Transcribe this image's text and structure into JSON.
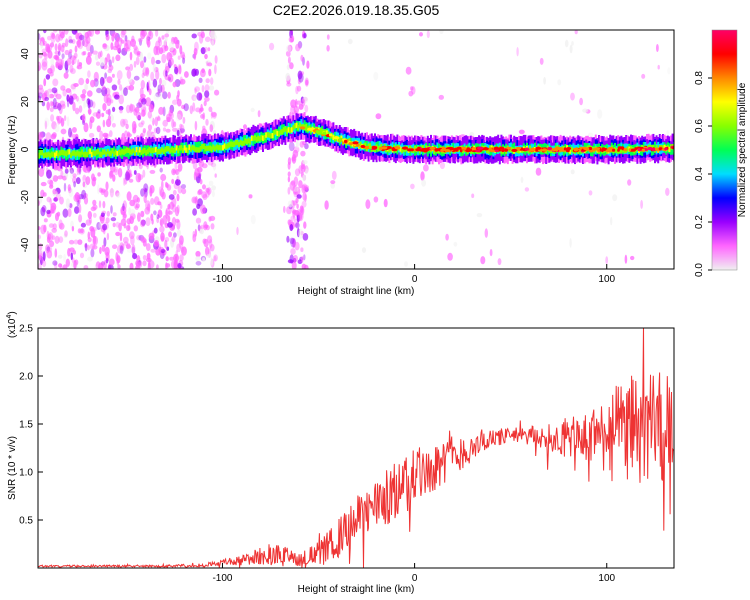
{
  "chart_data": [
    {
      "type": "heatmap",
      "title": "C2E2.2026.019.18.35.G05",
      "xlabel": "Height of straight line (km)",
      "ylabel": "Frequency (Hz)",
      "xlim": [
        -196,
        135
      ],
      "ylim": [
        -50,
        50
      ],
      "xticks": [
        -100,
        0,
        100
      ],
      "xtick_labels": [
        "-100",
        "0",
        "100"
      ],
      "yticks": [
        -40,
        -20,
        0,
        20,
        40
      ],
      "ytick_labels": [
        "-40",
        "-20",
        "0",
        "20",
        "40"
      ],
      "colorbar": {
        "label": "Normalized spectral amplitude",
        "range": [
          0,
          1
        ],
        "ticks": [
          0.0,
          0.2,
          0.4,
          0.6,
          0.8
        ],
        "tick_labels": [
          "0.0",
          "0.2",
          "0.4",
          "0.6",
          "0.8"
        ],
        "colors": [
          "#f0f0f0",
          "#ff66ff",
          "#9900ff",
          "#0000ff",
          "#00ddff",
          "#00ff55",
          "#88ff00",
          "#ffff00",
          "#ff8800",
          "#ff0000",
          "#ff0066"
        ]
      },
      "ridge": {
        "x": [
          -196,
          -150,
          -125,
          -100,
          -80,
          -60,
          -52,
          -45,
          -35,
          -25,
          -15,
          0,
          50,
          100,
          135
        ],
        "y": [
          -2,
          -1,
          0,
          1,
          5,
          10,
          8,
          6,
          3,
          1,
          0.5,
          0,
          0,
          0,
          0.5
        ]
      },
      "noise_region_x": [
        -196,
        -120
      ]
    },
    {
      "type": "line",
      "title": "",
      "xlabel": "Height of straight line (km)",
      "ylabel": "SNR (10 * v/v)",
      "y_scale_label": "(x10",
      "y_scale_exponent": "4",
      "xlim": [
        -196,
        135
      ],
      "ylim": [
        0,
        2.5
      ],
      "xticks": [
        -100,
        0,
        100
      ],
      "xtick_labels": [
        "-100",
        "0",
        "100"
      ],
      "yticks": [
        0.5,
        1.0,
        1.5,
        2.0,
        2.5
      ],
      "ytick_labels": [
        "0.5",
        "1.0",
        "1.5",
        "2.0",
        "2.5"
      ],
      "color": "#ee3333",
      "envelope": {
        "x": [
          -196,
          -130,
          -110,
          -90,
          -75,
          -60,
          -50,
          -40,
          -30,
          -20,
          -10,
          0,
          10,
          20,
          30,
          40,
          50,
          60,
          70,
          80,
          90,
          100,
          110,
          120,
          135
        ],
        "mean": [
          0.02,
          0.02,
          0.03,
          0.08,
          0.15,
          0.1,
          0.15,
          0.3,
          0.5,
          0.65,
          0.8,
          0.95,
          1.05,
          1.15,
          1.25,
          1.35,
          1.38,
          1.38,
          1.35,
          1.35,
          1.35,
          1.4,
          1.45,
          1.45,
          1.45
        ],
        "amp": [
          0.01,
          0.01,
          0.02,
          0.05,
          0.12,
          0.08,
          0.12,
          0.2,
          0.25,
          0.3,
          0.3,
          0.3,
          0.25,
          0.2,
          0.15,
          0.1,
          0.08,
          0.1,
          0.15,
          0.2,
          0.3,
          0.4,
          0.55,
          0.6,
          0.6
        ]
      }
    }
  ]
}
